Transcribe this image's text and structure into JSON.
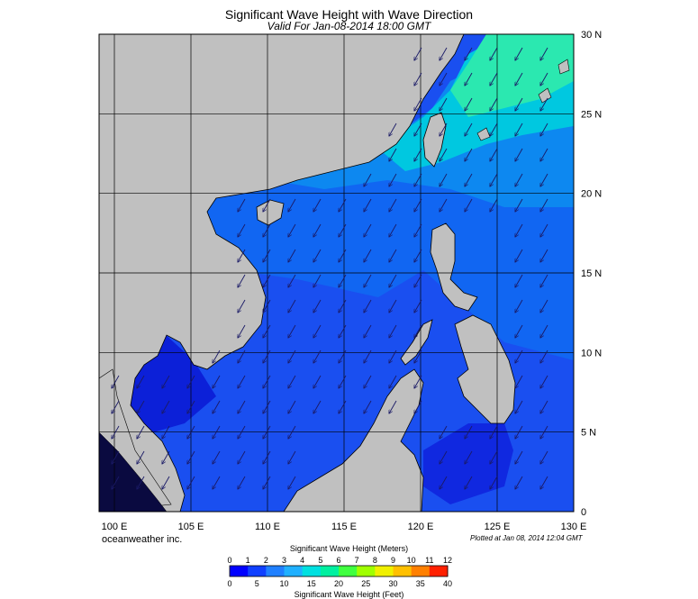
{
  "header": {
    "title": "Significant Wave Height with Wave Direction",
    "subtitle": "Valid For Jan-08-2014 18:00 GMT"
  },
  "map": {
    "lon_range": [
      99,
      130
    ],
    "lat_range": [
      0,
      30
    ],
    "lon_labels": [
      {
        "value": 100,
        "label": "100 E"
      },
      {
        "value": 105,
        "label": "105 E"
      },
      {
        "value": 110,
        "label": "110 E"
      },
      {
        "value": 115,
        "label": "115 E"
      },
      {
        "value": 120,
        "label": "120 E"
      },
      {
        "value": 125,
        "label": "125 E"
      },
      {
        "value": 130,
        "label": "130 E"
      }
    ],
    "lat_labels": [
      {
        "value": 0,
        "label": "0"
      },
      {
        "value": 5,
        "label": "5 N"
      },
      {
        "value": 10,
        "label": "10 N"
      },
      {
        "value": 15,
        "label": "15 N"
      },
      {
        "value": 20,
        "label": "20 N"
      },
      {
        "value": 25,
        "label": "25 N"
      },
      {
        "value": 30,
        "label": "30 N"
      }
    ],
    "grid": true,
    "colors": {
      "land": "#c0c0c0",
      "sea_low": "#1e2ee6",
      "sea_mid": "#0f70f5",
      "sea_high": "#00d6c8",
      "sea_peak": "#22f0a0",
      "arrow": "#1a1a66"
    },
    "wave_direction": "from north-east toward south-west"
  },
  "footer": {
    "credit": "oceanweather inc.",
    "plotted": "Plotted at Jan 08, 2014 12:04 GMT"
  },
  "colorbar": {
    "meters_title": "Significant Wave Height (Meters)",
    "feet_title": "Significant Wave Height (Feet)",
    "meters_ticks": [
      "0",
      "1",
      "2",
      "3",
      "4",
      "5",
      "6",
      "7",
      "8",
      "9",
      "10",
      "11",
      "12"
    ],
    "feet_ticks": [
      "0",
      "5",
      "10",
      "15",
      "20",
      "25",
      "30",
      "35",
      "40"
    ],
    "colors": [
      "#0000ff",
      "#1040ff",
      "#2080ff",
      "#20b0ff",
      "#00e0e0",
      "#00f0a0",
      "#40ff40",
      "#a0ff00",
      "#f0f000",
      "#ffc000",
      "#ff8000",
      "#ff2000"
    ]
  }
}
